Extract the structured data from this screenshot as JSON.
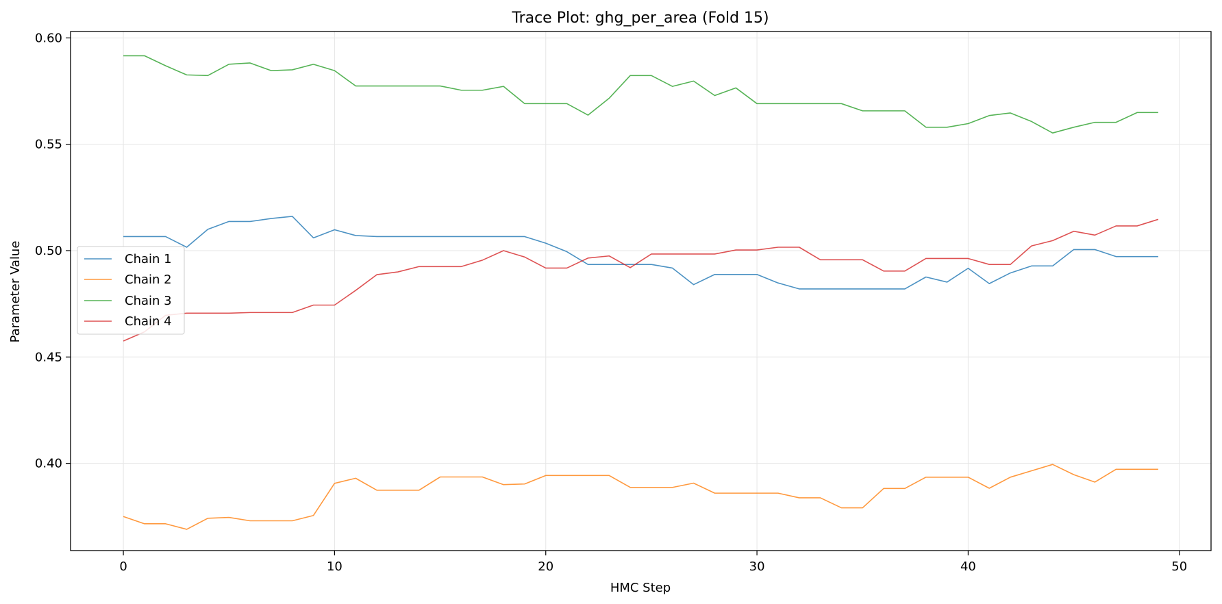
{
  "chart_data": {
    "type": "line",
    "title": "Trace Plot: ghg_per_area (Fold 15)",
    "xlabel": "HMC Step",
    "ylabel": "Parameter Value",
    "xlim": [
      -2.5,
      51.5
    ],
    "ylim": [
      0.359,
      0.603
    ],
    "xticks": [
      0,
      10,
      20,
      30,
      40,
      50
    ],
    "yticks": [
      0.4,
      0.45,
      0.5,
      0.55,
      0.6
    ],
    "ytick_labels": [
      "0.40",
      "0.45",
      "0.50",
      "0.55",
      "0.60"
    ],
    "grid": true,
    "legend_position": "center-left",
    "x": [
      0,
      1,
      2,
      3,
      4,
      5,
      6,
      7,
      8,
      9,
      10,
      11,
      12,
      13,
      14,
      15,
      16,
      17,
      18,
      19,
      20,
      21,
      22,
      23,
      24,
      25,
      26,
      27,
      28,
      29,
      30,
      31,
      32,
      33,
      34,
      35,
      36,
      37,
      38,
      39,
      40,
      41,
      42,
      43,
      44,
      45,
      46,
      47,
      48,
      49
    ],
    "series": [
      {
        "name": "Chain 1",
        "color": "#1f77b4",
        "values": [
          0.5066,
          0.5066,
          0.5066,
          0.5016,
          0.51,
          0.5137,
          0.5137,
          0.5151,
          0.5161,
          0.506,
          0.5098,
          0.5071,
          0.5066,
          0.5066,
          0.5066,
          0.5066,
          0.5066,
          0.5066,
          0.5066,
          0.5066,
          0.5035,
          0.4995,
          0.4935,
          0.4935,
          0.4935,
          0.4935,
          0.4918,
          0.484,
          0.4888,
          0.4888,
          0.4888,
          0.4848,
          0.482,
          0.482,
          0.482,
          0.482,
          0.482,
          0.482,
          0.4876,
          0.4852,
          0.4917,
          0.4845,
          0.4895,
          0.4928,
          0.4928,
          0.5005,
          0.5005,
          0.4972,
          0.4972,
          0.4972
        ]
      },
      {
        "name": "Chain 2",
        "color": "#ff7f0e",
        "values": [
          0.375,
          0.3716,
          0.3716,
          0.369,
          0.3742,
          0.3746,
          0.373,
          0.373,
          0.373,
          0.3755,
          0.3906,
          0.393,
          0.3874,
          0.3874,
          0.3874,
          0.3936,
          0.3936,
          0.3936,
          0.39,
          0.3903,
          0.3943,
          0.3943,
          0.3943,
          0.3943,
          0.3887,
          0.3887,
          0.3887,
          0.3907,
          0.386,
          0.386,
          0.386,
          0.386,
          0.3838,
          0.3838,
          0.3791,
          0.3791,
          0.3882,
          0.3882,
          0.3935,
          0.3935,
          0.3935,
          0.3883,
          0.3935,
          0.3965,
          0.3995,
          0.3947,
          0.3912,
          0.3972,
          0.3972,
          0.3972
        ]
      },
      {
        "name": "Chain 3",
        "color": "#2ca02c",
        "values": [
          0.5916,
          0.5916,
          0.5869,
          0.5826,
          0.5823,
          0.5876,
          0.5882,
          0.5846,
          0.585,
          0.5876,
          0.5846,
          0.5774,
          0.5774,
          0.5774,
          0.5774,
          0.5774,
          0.5754,
          0.5754,
          0.5772,
          0.5691,
          0.5691,
          0.5691,
          0.5637,
          0.5716,
          0.5823,
          0.5823,
          0.5772,
          0.5797,
          0.5729,
          0.5765,
          0.5691,
          0.5691,
          0.5691,
          0.5691,
          0.5691,
          0.5657,
          0.5657,
          0.5657,
          0.558,
          0.558,
          0.5597,
          0.5635,
          0.5647,
          0.5607,
          0.5553,
          0.558,
          0.5603,
          0.5603,
          0.5649,
          0.5649
        ]
      },
      {
        "name": "Chain 4",
        "color": "#d62728",
        "values": [
          0.4575,
          0.4618,
          0.4696,
          0.4706,
          0.4706,
          0.4706,
          0.4709,
          0.4709,
          0.4709,
          0.4744,
          0.4744,
          0.4813,
          0.4887,
          0.49,
          0.4925,
          0.4925,
          0.4925,
          0.4955,
          0.5,
          0.497,
          0.4918,
          0.4918,
          0.4965,
          0.4975,
          0.492,
          0.4984,
          0.4984,
          0.4984,
          0.4984,
          0.5003,
          0.5003,
          0.5016,
          0.5016,
          0.4957,
          0.4957,
          0.4957,
          0.4904,
          0.4904,
          0.4963,
          0.4963,
          0.4963,
          0.4935,
          0.4935,
          0.5022,
          0.5047,
          0.5091,
          0.5073,
          0.5116,
          0.5116,
          0.5147
        ]
      }
    ]
  }
}
